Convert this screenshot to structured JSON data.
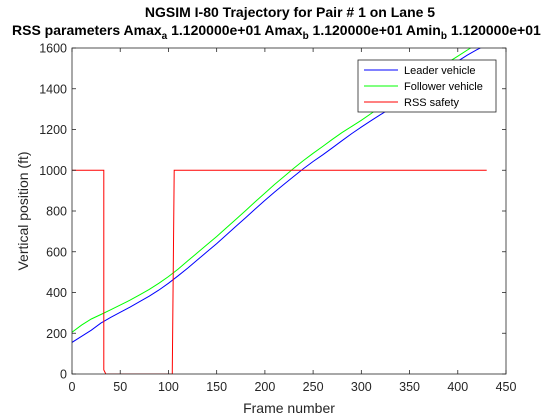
{
  "chart_data": {
    "type": "line",
    "title_line1": "NGSIM I-80 Trajectory for Pair # 1 on Lane 5",
    "title_line2": {
      "parts": [
        {
          "text": "RSS parameters Amax",
          "sub": false
        },
        {
          "text": "a",
          "sub": true
        },
        {
          "text": " 1.120000e+01 Amax",
          "sub": false
        },
        {
          "text": "b",
          "sub": true
        },
        {
          "text": " 1.120000e+01 Amin",
          "sub": false
        },
        {
          "text": "b",
          "sub": true
        },
        {
          "text": " 1.120000e+01",
          "sub": false
        }
      ]
    },
    "xlabel": "Frame number",
    "ylabel": "Vertical position (ft)",
    "xlim": [
      0,
      450
    ],
    "ylim": [
      0,
      1600
    ],
    "xticks": [
      0,
      50,
      100,
      150,
      200,
      250,
      300,
      350,
      400,
      450
    ],
    "yticks": [
      0,
      200,
      400,
      600,
      800,
      1000,
      1200,
      1400,
      1600
    ],
    "grid": false,
    "legend_position": "top-right",
    "series": [
      {
        "name": "Leader vehicle",
        "color": "#0000ff",
        "x": [
          0,
          10,
          20,
          30,
          40,
          50,
          60,
          70,
          80,
          90,
          100,
          110,
          120,
          130,
          140,
          150,
          160,
          170,
          180,
          190,
          200,
          210,
          220,
          230,
          240,
          250,
          260,
          270,
          280,
          290,
          300,
          310,
          320,
          330,
          340,
          350,
          360,
          370,
          380,
          390,
          400,
          410,
          420,
          430
        ],
        "y": [
          155,
          185,
          215,
          250,
          278,
          303,
          328,
          355,
          382,
          412,
          445,
          482,
          520,
          560,
          600,
          640,
          682,
          725,
          767,
          810,
          852,
          893,
          932,
          970,
          1008,
          1043,
          1076,
          1110,
          1145,
          1180,
          1212,
          1243,
          1273,
          1303,
          1333,
          1364,
          1397,
          1432,
          1467,
          1502,
          1535,
          1565,
          1592,
          1615
        ]
      },
      {
        "name": "Follower vehicle",
        "color": "#00ff00",
        "x": [
          0,
          10,
          20,
          30,
          40,
          50,
          60,
          70,
          80,
          90,
          100,
          110,
          120,
          130,
          140,
          150,
          160,
          170,
          180,
          190,
          200,
          210,
          220,
          230,
          240,
          250,
          260,
          270,
          280,
          290,
          300,
          310,
          320,
          330,
          340,
          350,
          360,
          370,
          380,
          390,
          400,
          410,
          420,
          430
        ],
        "y": [
          205,
          240,
          270,
          292,
          315,
          338,
          362,
          388,
          415,
          445,
          478,
          515,
          555,
          595,
          635,
          675,
          717,
          760,
          802,
          845,
          888,
          930,
          970,
          1010,
          1048,
          1083,
          1117,
          1152,
          1185,
          1215,
          1245,
          1278,
          1312,
          1345,
          1378,
          1410,
          1440,
          1470,
          1500,
          1530,
          1560,
          1590,
          1620,
          1650
        ]
      },
      {
        "name": "RSS safety",
        "color": "#ff0000",
        "x": [
          0,
          33,
          33,
          35,
          35,
          104,
          104,
          106,
          106,
          430
        ],
        "y": [
          1000,
          1000,
          20,
          0,
          0,
          0,
          20,
          1000,
          1000,
          1000
        ]
      }
    ]
  }
}
